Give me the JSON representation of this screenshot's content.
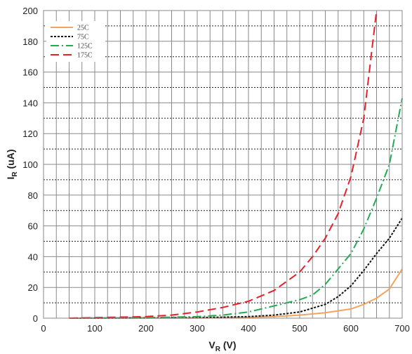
{
  "chart_data": {
    "type": "line",
    "title": "",
    "xlabel": {
      "main": "V",
      "sub": "R",
      "suffix": " (V)"
    },
    "ylabel": {
      "main": "I",
      "sub": "R",
      "suffix": " (uA)"
    },
    "xlim": [
      0,
      700
    ],
    "ylim": [
      0,
      200
    ],
    "x_ticks": [
      0,
      100,
      200,
      300,
      400,
      500,
      600,
      700
    ],
    "y_ticks": [
      0,
      20,
      40,
      60,
      80,
      100,
      120,
      140,
      160,
      180,
      200
    ],
    "grid": true,
    "legend_position": "top-left",
    "series": [
      {
        "name": "25C",
        "color": "#f4a460",
        "dash": "solid",
        "points": [
          [
            50,
            0
          ],
          [
            300,
            0.1
          ],
          [
            400,
            0.5
          ],
          [
            450,
            1
          ],
          [
            500,
            2
          ],
          [
            550,
            3.5
          ],
          [
            600,
            6
          ],
          [
            625,
            9
          ],
          [
            650,
            13
          ],
          [
            675,
            19
          ],
          [
            700,
            32
          ]
        ]
      },
      {
        "name": "75C",
        "color": "#111111",
        "dash": "dotted",
        "points": [
          [
            50,
            0
          ],
          [
            300,
            0.3
          ],
          [
            400,
            1
          ],
          [
            450,
            2
          ],
          [
            500,
            4
          ],
          [
            550,
            9
          ],
          [
            575,
            14
          ],
          [
            600,
            21
          ],
          [
            625,
            31
          ],
          [
            650,
            42
          ],
          [
            675,
            52
          ],
          [
            700,
            65
          ]
        ]
      },
      {
        "name": "125C",
        "color": "#22aa55",
        "dash": "dashdot",
        "points": [
          [
            50,
            0
          ],
          [
            200,
            0.3
          ],
          [
            300,
            1
          ],
          [
            350,
            2
          ],
          [
            400,
            4
          ],
          [
            450,
            8
          ],
          [
            500,
            12
          ],
          [
            525,
            15
          ],
          [
            550,
            22
          ],
          [
            575,
            32
          ],
          [
            600,
            42
          ],
          [
            625,
            58
          ],
          [
            650,
            78
          ],
          [
            675,
            100
          ],
          [
            700,
            143
          ]
        ]
      },
      {
        "name": "175C",
        "color": "#e8202a",
        "dash": "dashed",
        "points": [
          [
            50,
            0
          ],
          [
            200,
            1
          ],
          [
            250,
            2
          ],
          [
            300,
            4
          ],
          [
            350,
            7
          ],
          [
            400,
            11
          ],
          [
            450,
            18
          ],
          [
            500,
            30
          ],
          [
            525,
            40
          ],
          [
            550,
            52
          ],
          [
            575,
            68
          ],
          [
            600,
            92
          ],
          [
            625,
            130
          ],
          [
            650,
            200
          ]
        ]
      }
    ]
  }
}
